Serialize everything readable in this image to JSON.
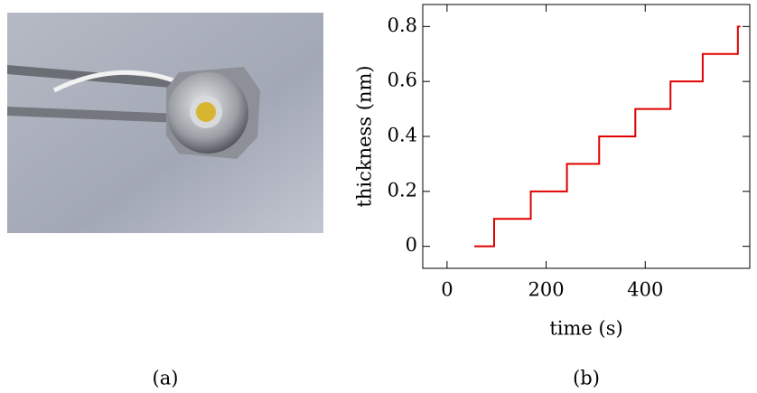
{
  "photo_caption": "(a)",
  "chart_data": {
    "type": "line",
    "caption": "(b)",
    "xlabel": "time (s)",
    "ylabel": "thickness (nm)",
    "x": [
      55,
      95,
      95,
      169,
      169,
      242,
      242,
      307,
      307,
      380,
      380,
      451,
      451,
      516,
      516,
      587,
      587,
      592
    ],
    "series": [
      {
        "color": "#e00000",
        "values": [
          0,
          0,
          0.1,
          0.1,
          0.2,
          0.2,
          0.3,
          0.3,
          0.4,
          0.4,
          0.5,
          0.5,
          0.6,
          0.6,
          0.7,
          0.7,
          0.8,
          0.8
        ]
      }
    ],
    "xlim": [
      -49,
      611
    ],
    "ylim": [
      -0.08,
      0.88
    ],
    "xticks": [
      0,
      200,
      400
    ],
    "yticks": [
      0,
      0.2,
      0.4,
      0.6,
      0.8
    ]
  }
}
